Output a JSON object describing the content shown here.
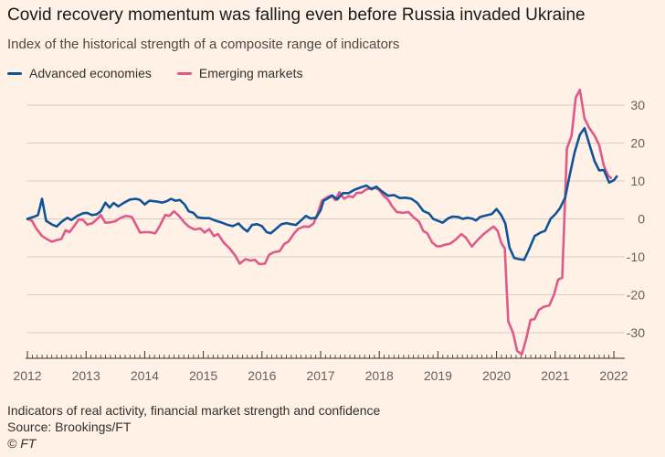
{
  "header": {
    "title": "Covid recovery momentum was falling even before Russia invaded Ukraine",
    "subtitle": "Index of the historical strength of a composite range of indicators"
  },
  "footer": {
    "note": "Indicators of real activity, financial market strength and confidence",
    "source": "Source: Brookings/FT",
    "credit": "© FT"
  },
  "colors": {
    "background": "#FFF1E5",
    "advanced": "#0F5499",
    "emerging": "#E0598B",
    "grid": "#D9CCC1",
    "axis": "#33302E",
    "tick_text": "#66605C"
  },
  "chart_data": {
    "type": "line",
    "title": "Covid recovery momentum was falling even before Russia invaded Ukraine",
    "subtitle": "Index of the historical strength of a composite range of indicators",
    "xlabel": "",
    "ylabel": "",
    "xlim": [
      2012,
      2022
    ],
    "ylim": [
      -36,
      34
    ],
    "x_ticks": [
      2012,
      2013,
      2014,
      2015,
      2016,
      2017,
      2018,
      2019,
      2020,
      2021,
      2022
    ],
    "y_ticks": [
      30,
      20,
      10,
      0,
      -10,
      -20,
      -30
    ],
    "y_axis_side": "right",
    "grid": "horizontal",
    "legend_position": "top-left",
    "series": [
      {
        "name": "Advanced economies",
        "color": "#0F5499",
        "points": [
          [
            2012.0,
            0
          ],
          [
            2012.1,
            0.5
          ],
          [
            2012.18,
            1
          ],
          [
            2012.25,
            5.3
          ],
          [
            2012.32,
            -0.5
          ],
          [
            2012.42,
            -1.5
          ],
          [
            2012.5,
            -2
          ],
          [
            2012.58,
            -0.8
          ],
          [
            2012.68,
            0.3
          ],
          [
            2012.75,
            -0.3
          ],
          [
            2012.85,
            0.8
          ],
          [
            2012.95,
            1.5
          ],
          [
            2013.02,
            1.6
          ],
          [
            2013.1,
            1.0
          ],
          [
            2013.18,
            1.2
          ],
          [
            2013.25,
            2.0
          ],
          [
            2013.33,
            4.3
          ],
          [
            2013.4,
            3.0
          ],
          [
            2013.47,
            4.2
          ],
          [
            2013.55,
            3.3
          ],
          [
            2013.65,
            4.3
          ],
          [
            2013.75,
            5.1
          ],
          [
            2013.85,
            5.3
          ],
          [
            2013.92,
            5.0
          ],
          [
            2014.0,
            3.8
          ],
          [
            2014.08,
            4.8
          ],
          [
            2014.2,
            4.6
          ],
          [
            2014.3,
            4.3
          ],
          [
            2014.38,
            4.7
          ],
          [
            2014.45,
            5.3
          ],
          [
            2014.52,
            4.8
          ],
          [
            2014.6,
            5.0
          ],
          [
            2014.68,
            3.8
          ],
          [
            2014.75,
            2.0
          ],
          [
            2014.83,
            1.6
          ],
          [
            2014.9,
            0.4
          ],
          [
            2015.0,
            0.2
          ],
          [
            2015.1,
            0.2
          ],
          [
            2015.2,
            -0.4
          ],
          [
            2015.3,
            -0.9
          ],
          [
            2015.4,
            -1.5
          ],
          [
            2015.5,
            -1.9
          ],
          [
            2015.6,
            -1.2
          ],
          [
            2015.68,
            -2.5
          ],
          [
            2015.75,
            -3.3
          ],
          [
            2015.83,
            -1.6
          ],
          [
            2015.92,
            -1.4
          ],
          [
            2016.0,
            -1.9
          ],
          [
            2016.08,
            -3.5
          ],
          [
            2016.15,
            -3.8
          ],
          [
            2016.25,
            -2.5
          ],
          [
            2016.33,
            -1.4
          ],
          [
            2016.42,
            -1.1
          ],
          [
            2016.5,
            -1.4
          ],
          [
            2016.58,
            -1.6
          ],
          [
            2016.68,
            -0.2
          ],
          [
            2016.75,
            0.8
          ],
          [
            2016.83,
            0.1
          ],
          [
            2016.92,
            0.3
          ],
          [
            2017.0,
            2.3
          ],
          [
            2017.05,
            4.8
          ],
          [
            2017.12,
            5.4
          ],
          [
            2017.2,
            6.2
          ],
          [
            2017.28,
            5.1
          ],
          [
            2017.38,
            6.8
          ],
          [
            2017.48,
            6.8
          ],
          [
            2017.58,
            7.7
          ],
          [
            2017.68,
            8.3
          ],
          [
            2017.78,
            8.8
          ],
          [
            2017.87,
            7.8
          ],
          [
            2017.95,
            8.5
          ],
          [
            2018.05,
            7.2
          ],
          [
            2018.15,
            6.1
          ],
          [
            2018.25,
            6.3
          ],
          [
            2018.35,
            5.5
          ],
          [
            2018.45,
            5.6
          ],
          [
            2018.55,
            5.3
          ],
          [
            2018.65,
            4.2
          ],
          [
            2018.75,
            2.1
          ],
          [
            2018.85,
            1.4
          ],
          [
            2018.92,
            0
          ],
          [
            2019.0,
            -0.5
          ],
          [
            2019.08,
            -1.0
          ],
          [
            2019.18,
            0.2
          ],
          [
            2019.25,
            0.6
          ],
          [
            2019.35,
            0.5
          ],
          [
            2019.42,
            0
          ],
          [
            2019.5,
            0.3
          ],
          [
            2019.58,
            0.1
          ],
          [
            2019.65,
            -0.4
          ],
          [
            2019.72,
            0.5
          ],
          [
            2019.82,
            0.9
          ],
          [
            2019.92,
            1.3
          ],
          [
            2020.0,
            2.6
          ],
          [
            2020.08,
            1.0
          ],
          [
            2020.15,
            -1.2
          ],
          [
            2020.22,
            -7.5
          ],
          [
            2020.3,
            -10.3
          ],
          [
            2020.38,
            -10.6
          ],
          [
            2020.47,
            -10.8
          ],
          [
            2020.55,
            -8.2
          ],
          [
            2020.65,
            -4.5
          ],
          [
            2020.75,
            -3.6
          ],
          [
            2020.83,
            -3.1
          ],
          [
            2020.92,
            0
          ],
          [
            2021.0,
            1.2
          ],
          [
            2021.08,
            2.8
          ],
          [
            2021.17,
            5.6
          ],
          [
            2021.25,
            11.8
          ],
          [
            2021.33,
            17.5
          ],
          [
            2021.42,
            22.2
          ],
          [
            2021.5,
            23.9
          ],
          [
            2021.58,
            19.8
          ],
          [
            2021.67,
            15.3
          ],
          [
            2021.75,
            12.8
          ],
          [
            2021.83,
            12.9
          ],
          [
            2021.92,
            9.6
          ],
          [
            2022.0,
            10.2
          ],
          [
            2022.05,
            11.2
          ]
        ]
      },
      {
        "name": "Emerging markets",
        "color": "#E0598B",
        "points": [
          [
            2012.0,
            0
          ],
          [
            2012.08,
            -0.5
          ],
          [
            2012.15,
            -2.5
          ],
          [
            2012.25,
            -4.5
          ],
          [
            2012.35,
            -5.5
          ],
          [
            2012.42,
            -6.0
          ],
          [
            2012.5,
            -5.6
          ],
          [
            2012.58,
            -5.3
          ],
          [
            2012.65,
            -3.0
          ],
          [
            2012.72,
            -3.5
          ],
          [
            2012.8,
            -1.8
          ],
          [
            2012.88,
            -0.1
          ],
          [
            2012.95,
            -0.3
          ],
          [
            2013.02,
            -1.5
          ],
          [
            2013.1,
            -1.2
          ],
          [
            2013.18,
            -0.2
          ],
          [
            2013.25,
            1.0
          ],
          [
            2013.33,
            -1.0
          ],
          [
            2013.42,
            -0.9
          ],
          [
            2013.5,
            -0.6
          ],
          [
            2013.58,
            0.2
          ],
          [
            2013.68,
            0.8
          ],
          [
            2013.78,
            0.5
          ],
          [
            2013.85,
            -1.5
          ],
          [
            2013.92,
            -3.6
          ],
          [
            2014.0,
            -3.5
          ],
          [
            2014.08,
            -3.5
          ],
          [
            2014.18,
            -3.8
          ],
          [
            2014.25,
            -2.0
          ],
          [
            2014.35,
            1.0
          ],
          [
            2014.42,
            0.8
          ],
          [
            2014.5,
            2.0
          ],
          [
            2014.58,
            0.9
          ],
          [
            2014.68,
            -1.0
          ],
          [
            2014.75,
            -2.0
          ],
          [
            2014.85,
            -2.8
          ],
          [
            2014.95,
            -2.5
          ],
          [
            2015.02,
            -3.6
          ],
          [
            2015.1,
            -2.7
          ],
          [
            2015.18,
            -4.5
          ],
          [
            2015.25,
            -4.0
          ],
          [
            2015.35,
            -6.3
          ],
          [
            2015.45,
            -7.8
          ],
          [
            2015.55,
            -9.8
          ],
          [
            2015.62,
            -11.8
          ],
          [
            2015.72,
            -10.6
          ],
          [
            2015.8,
            -11.0
          ],
          [
            2015.88,
            -10.8
          ],
          [
            2015.95,
            -11.9
          ],
          [
            2016.05,
            -11.8
          ],
          [
            2016.12,
            -9.5
          ],
          [
            2016.2,
            -8.8
          ],
          [
            2016.3,
            -8.5
          ],
          [
            2016.38,
            -6.6
          ],
          [
            2016.45,
            -6.0
          ],
          [
            2016.55,
            -3.8
          ],
          [
            2016.62,
            -2.6
          ],
          [
            2016.72,
            -2.0
          ],
          [
            2016.8,
            -2.1
          ],
          [
            2016.88,
            -1.2
          ],
          [
            2016.95,
            1.5
          ],
          [
            2017.02,
            4.8
          ],
          [
            2017.1,
            5.6
          ],
          [
            2017.18,
            6.2
          ],
          [
            2017.25,
            5.0
          ],
          [
            2017.32,
            7.0
          ],
          [
            2017.4,
            5.3
          ],
          [
            2017.48,
            6.0
          ],
          [
            2017.55,
            5.7
          ],
          [
            2017.62,
            6.9
          ],
          [
            2017.7,
            6.9
          ],
          [
            2017.78,
            7.8
          ],
          [
            2017.85,
            8.0
          ],
          [
            2017.92,
            8.3
          ],
          [
            2018.0,
            7.6
          ],
          [
            2018.08,
            6.0
          ],
          [
            2018.15,
            5.1
          ],
          [
            2018.22,
            3.3
          ],
          [
            2018.3,
            1.8
          ],
          [
            2018.4,
            1.6
          ],
          [
            2018.5,
            1.8
          ],
          [
            2018.58,
            0.5
          ],
          [
            2018.68,
            -0.8
          ],
          [
            2018.75,
            -3.2
          ],
          [
            2018.82,
            -3.8
          ],
          [
            2018.9,
            -6.2
          ],
          [
            2018.98,
            -7.2
          ],
          [
            2019.05,
            -7.2
          ],
          [
            2019.12,
            -6.8
          ],
          [
            2019.2,
            -6.6
          ],
          [
            2019.3,
            -5.5
          ],
          [
            2019.4,
            -4.0
          ],
          [
            2019.48,
            -5.0
          ],
          [
            2019.58,
            -7.3
          ],
          [
            2019.68,
            -5.5
          ],
          [
            2019.78,
            -4.0
          ],
          [
            2019.88,
            -2.8
          ],
          [
            2019.95,
            -2.0
          ],
          [
            2020.02,
            -3.2
          ],
          [
            2020.08,
            -6.3
          ],
          [
            2020.14,
            -7.8
          ],
          [
            2020.2,
            -27.0
          ],
          [
            2020.28,
            -30.0
          ],
          [
            2020.35,
            -34.8
          ],
          [
            2020.43,
            -35.7
          ],
          [
            2020.5,
            -32.0
          ],
          [
            2020.58,
            -26.6
          ],
          [
            2020.65,
            -26.4
          ],
          [
            2020.72,
            -24.0
          ],
          [
            2020.8,
            -23.2
          ],
          [
            2020.9,
            -22.8
          ],
          [
            2020.98,
            -20.0
          ],
          [
            2021.05,
            -16.0
          ],
          [
            2021.12,
            -15.5
          ],
          [
            2021.2,
            18.5
          ],
          [
            2021.28,
            22.0
          ],
          [
            2021.35,
            32.0
          ],
          [
            2021.42,
            34.0
          ],
          [
            2021.5,
            26.5
          ],
          [
            2021.58,
            24.0
          ],
          [
            2021.67,
            22.0
          ],
          [
            2021.75,
            19.5
          ],
          [
            2021.83,
            14.0
          ],
          [
            2021.9,
            11.5
          ],
          [
            2021.95,
            10.8
          ]
        ]
      }
    ]
  }
}
